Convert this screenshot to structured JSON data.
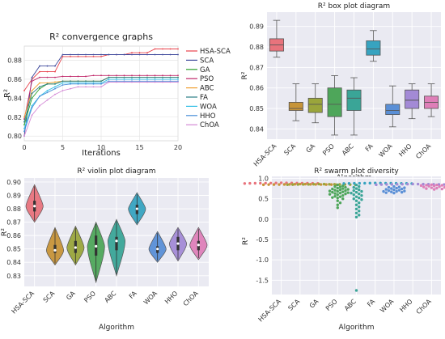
{
  "figure": {
    "algorithms": [
      "HSA-SCA",
      "SCA",
      "GA",
      "PSO",
      "ABC",
      "FA",
      "WOA",
      "HHO",
      "ChOA"
    ]
  },
  "chart_data": [
    {
      "type": "line",
      "title": "R² convergence graphs",
      "xlabel": "Iterations",
      "ylabel": "R²",
      "xlim": [
        0,
        20
      ],
      "ylim": [
        0.795,
        0.895
      ],
      "xticks": [
        0,
        5,
        10,
        15,
        20
      ],
      "yticks": [
        0.8,
        0.82,
        0.84,
        0.86,
        0.88
      ],
      "grid": true,
      "legend_position": "right",
      "series": [
        {
          "name": "HSA-SCA",
          "color": "#e8434c",
          "x": [
            0,
            1,
            2,
            3,
            4,
            5,
            6,
            7,
            8,
            9,
            10,
            11,
            12,
            13,
            14,
            15,
            16,
            17,
            18,
            19,
            20
          ],
          "y": [
            0.848,
            0.86,
            0.868,
            0.868,
            0.868,
            0.884,
            0.884,
            0.884,
            0.884,
            0.884,
            0.884,
            0.886,
            0.886,
            0.886,
            0.888,
            0.888,
            0.888,
            0.892,
            0.892,
            0.892,
            0.892
          ]
        },
        {
          "name": "SCA",
          "color": "#3f4a9c",
          "x": [
            0,
            1,
            2,
            3,
            4,
            5,
            6,
            7,
            8,
            9,
            10,
            11,
            12,
            13,
            14,
            15,
            16,
            17,
            18,
            19,
            20
          ],
          "y": [
            0.8,
            0.862,
            0.874,
            0.874,
            0.874,
            0.886,
            0.886,
            0.886,
            0.886,
            0.886,
            0.886,
            0.886,
            0.886,
            0.886,
            0.886,
            0.886,
            0.886,
            0.886,
            0.886,
            0.886,
            0.886
          ]
        },
        {
          "name": "GA",
          "color": "#2ca02c",
          "x": [
            0,
            1,
            2,
            3,
            4,
            5,
            6,
            7,
            8,
            9,
            10,
            11,
            12,
            13,
            14,
            15,
            16,
            17,
            18,
            19,
            20
          ],
          "y": [
            0.812,
            0.84,
            0.85,
            0.855,
            0.855,
            0.858,
            0.858,
            0.858,
            0.858,
            0.858,
            0.858,
            0.862,
            0.862,
            0.862,
            0.862,
            0.862,
            0.862,
            0.862,
            0.862,
            0.862,
            0.862
          ]
        },
        {
          "name": "PSO",
          "color": "#c0286a",
          "x": [
            0,
            1,
            2,
            3,
            4,
            5,
            6,
            7,
            8,
            9,
            10,
            11,
            12,
            13,
            14,
            15,
            16,
            17,
            18,
            19,
            20
          ],
          "y": [
            0.818,
            0.858,
            0.862,
            0.862,
            0.862,
            0.863,
            0.863,
            0.863,
            0.863,
            0.864,
            0.864,
            0.864,
            0.864,
            0.864,
            0.864,
            0.864,
            0.864,
            0.864,
            0.864,
            0.864,
            0.864
          ]
        },
        {
          "name": "ABC",
          "color": "#f0a030",
          "x": [
            0,
            1,
            2,
            3,
            4,
            5,
            6,
            7,
            8,
            9,
            10,
            11,
            12,
            13,
            14,
            15,
            16,
            17,
            18,
            19,
            20
          ],
          "y": [
            0.82,
            0.848,
            0.856,
            0.856,
            0.857,
            0.858,
            0.858,
            0.858,
            0.858,
            0.858,
            0.858,
            0.862,
            0.862,
            0.862,
            0.862,
            0.862,
            0.862,
            0.862,
            0.862,
            0.862,
            0.862
          ]
        },
        {
          "name": "FA",
          "color": "#2a7f85",
          "x": [
            0,
            1,
            2,
            3,
            4,
            5,
            6,
            7,
            8,
            9,
            10,
            11,
            12,
            13,
            14,
            15,
            16,
            17,
            18,
            19,
            20
          ],
          "y": [
            0.815,
            0.845,
            0.852,
            0.855,
            0.855,
            0.858,
            0.858,
            0.858,
            0.858,
            0.858,
            0.858,
            0.862,
            0.862,
            0.862,
            0.862,
            0.862,
            0.862,
            0.862,
            0.862,
            0.862,
            0.862
          ]
        },
        {
          "name": "WOA",
          "color": "#34c0e6",
          "x": [
            0,
            1,
            2,
            3,
            4,
            5,
            6,
            7,
            8,
            9,
            10,
            11,
            12,
            13,
            14,
            15,
            16,
            17,
            18,
            19,
            20
          ],
          "y": [
            0.808,
            0.832,
            0.842,
            0.848,
            0.852,
            0.856,
            0.856,
            0.856,
            0.856,
            0.856,
            0.856,
            0.86,
            0.86,
            0.86,
            0.86,
            0.86,
            0.86,
            0.86,
            0.86,
            0.86,
            0.86
          ]
        },
        {
          "name": "HHO",
          "color": "#4a8fd8",
          "x": [
            0,
            1,
            2,
            3,
            4,
            5,
            6,
            7,
            8,
            9,
            10,
            11,
            12,
            13,
            14,
            15,
            16,
            17,
            18,
            19,
            20
          ],
          "y": [
            0.805,
            0.83,
            0.842,
            0.846,
            0.85,
            0.854,
            0.855,
            0.855,
            0.855,
            0.855,
            0.855,
            0.858,
            0.858,
            0.858,
            0.858,
            0.858,
            0.858,
            0.858,
            0.858,
            0.858,
            0.858
          ]
        },
        {
          "name": "ChOA",
          "color": "#d489d6",
          "x": [
            0,
            1,
            2,
            3,
            4,
            5,
            6,
            7,
            8,
            9,
            10,
            11,
            12,
            13,
            14,
            15,
            16,
            17,
            18,
            19,
            20
          ],
          "y": [
            0.8,
            0.822,
            0.832,
            0.838,
            0.844,
            0.848,
            0.85,
            0.852,
            0.852,
            0.852,
            0.852,
            0.857,
            0.857,
            0.857,
            0.857,
            0.857,
            0.857,
            0.857,
            0.857,
            0.857,
            0.857
          ]
        }
      ]
    },
    {
      "type": "box",
      "title": "R² box plot diagram",
      "xlabel": "Algorithm",
      "ylabel": "R²",
      "ylim": [
        0.835,
        0.897
      ],
      "yticks": [
        0.84,
        0.85,
        0.86,
        0.87,
        0.88,
        0.89
      ],
      "grid": true,
      "boxes": [
        {
          "category": "HSA-SCA",
          "color": "#e8737c",
          "min": 0.875,
          "q1": 0.878,
          "median": 0.881,
          "q3": 0.884,
          "max": 0.893
        },
        {
          "category": "SCA",
          "color": "#c79438",
          "min": 0.844,
          "q1": 0.849,
          "median": 0.85,
          "q3": 0.853,
          "max": 0.862
        },
        {
          "category": "GA",
          "color": "#9aa53b",
          "min": 0.843,
          "q1": 0.848,
          "median": 0.852,
          "q3": 0.855,
          "max": 0.862
        },
        {
          "category": "PSO",
          "color": "#4ea65a",
          "min": 0.837,
          "q1": 0.846,
          "median": 0.852,
          "q3": 0.86,
          "max": 0.866
        },
        {
          "category": "ABC",
          "color": "#3aa597",
          "min": 0.837,
          "q1": 0.849,
          "median": 0.855,
          "q3": 0.859,
          "max": 0.865
        },
        {
          "category": "FA",
          "color": "#37a3c0",
          "min": 0.873,
          "q1": 0.876,
          "median": 0.879,
          "q3": 0.883,
          "max": 0.888
        },
        {
          "category": "WOA",
          "color": "#5a8fd6",
          "min": 0.841,
          "q1": 0.847,
          "median": 0.849,
          "q3": 0.852,
          "max": 0.861
        },
        {
          "category": "HHO",
          "color": "#a38ad6",
          "min": 0.845,
          "q1": 0.85,
          "median": 0.854,
          "q3": 0.859,
          "max": 0.862
        },
        {
          "category": "ChOA",
          "color": "#de7fb8",
          "min": 0.846,
          "q1": 0.85,
          "median": 0.853,
          "q3": 0.856,
          "max": 0.862
        }
      ]
    },
    {
      "type": "violin",
      "title": "R² violin plot diagram",
      "xlabel": "Algorithm",
      "ylabel": "R²",
      "ylim": [
        0.822,
        0.903
      ],
      "yticks": [
        0.83,
        0.84,
        0.85,
        0.86,
        0.87,
        0.88,
        0.89,
        0.9
      ],
      "grid": true,
      "violins": [
        {
          "category": "HSA-SCA",
          "color": "#e8737c",
          "bottom": 0.87,
          "top": 0.898,
          "q1": 0.878,
          "median": 0.882,
          "q3": 0.886
        },
        {
          "category": "SCA",
          "color": "#c79438",
          "bottom": 0.838,
          "top": 0.866,
          "q1": 0.847,
          "median": 0.849,
          "q3": 0.853
        },
        {
          "category": "GA",
          "color": "#9aa53b",
          "bottom": 0.838,
          "top": 0.867,
          "q1": 0.847,
          "median": 0.851,
          "q3": 0.856
        },
        {
          "category": "PSO",
          "color": "#4ea65a",
          "bottom": 0.825,
          "top": 0.87,
          "q1": 0.845,
          "median": 0.852,
          "q3": 0.86
        },
        {
          "category": "ABC",
          "color": "#3aa597",
          "bottom": 0.83,
          "top": 0.872,
          "q1": 0.849,
          "median": 0.856,
          "q3": 0.859
        },
        {
          "category": "FA",
          "color": "#37a3c0",
          "bottom": 0.868,
          "top": 0.892,
          "q1": 0.876,
          "median": 0.88,
          "q3": 0.883
        },
        {
          "category": "WOA",
          "color": "#5a8fd6",
          "bottom": 0.84,
          "top": 0.863,
          "q1": 0.847,
          "median": 0.85,
          "q3": 0.852
        },
        {
          "category": "HHO",
          "color": "#a38ad6",
          "bottom": 0.841,
          "top": 0.866,
          "q1": 0.849,
          "median": 0.854,
          "q3": 0.859
        },
        {
          "category": "ChOA",
          "color": "#de7fb8",
          "bottom": 0.842,
          "top": 0.866,
          "q1": 0.849,
          "median": 0.853,
          "q3": 0.856
        }
      ]
    },
    {
      "type": "scatter",
      "subtype": "swarm",
      "title": "R² swarm plot diversity",
      "xlabel": "Algorithm",
      "ylabel": "R²",
      "ylim": [
        -1.85,
        1.05
      ],
      "yticks": [
        1.0,
        0.5,
        0.0,
        -0.5,
        -1.0,
        -1.5
      ],
      "grid": true,
      "swarms": [
        {
          "category": "HSA-SCA",
          "color": "#e8737c",
          "values": [
            0.875,
            0.878,
            0.879,
            0.88,
            0.881,
            0.881,
            0.882,
            0.882,
            0.883,
            0.884,
            0.885,
            0.886,
            0.887,
            0.889,
            0.893
          ]
        },
        {
          "category": "SCA",
          "color": "#c79438",
          "values": [
            0.844,
            0.846,
            0.848,
            0.849,
            0.849,
            0.85,
            0.85,
            0.851,
            0.852,
            0.853,
            0.854,
            0.855,
            0.857,
            0.86,
            0.862
          ]
        },
        {
          "category": "GA",
          "color": "#9aa53b",
          "values": [
            0.843,
            0.846,
            0.848,
            0.849,
            0.851,
            0.852,
            0.852,
            0.853,
            0.854,
            0.855,
            0.856,
            0.858,
            0.86,
            0.862
          ]
        },
        {
          "category": "PSO",
          "color": "#4ea65a",
          "values": [
            0.84,
            0.82,
            0.8,
            0.79,
            0.78,
            0.76,
            0.75,
            0.74,
            0.73,
            0.72,
            0.71,
            0.7,
            0.69,
            0.68,
            0.67,
            0.66,
            0.65,
            0.64,
            0.63,
            0.62,
            0.61,
            0.6,
            0.58,
            0.56,
            0.55,
            0.53,
            0.52,
            0.5,
            0.45,
            0.4,
            0.35,
            0.28
          ]
        },
        {
          "category": "ABC",
          "color": "#3aa597",
          "values": [
            0.84,
            0.8,
            0.78,
            0.75,
            0.72,
            0.7,
            0.68,
            0.66,
            0.64,
            0.62,
            0.6,
            0.58,
            0.55,
            0.52,
            0.5,
            0.48,
            0.45,
            0.4,
            0.35,
            0.3,
            0.25,
            0.2,
            0.15,
            0.1,
            0.05,
            -1.75
          ]
        },
        {
          "category": "FA",
          "color": "#37a3c0",
          "values": [
            0.873,
            0.875,
            0.876,
            0.877,
            0.878,
            0.879,
            0.879,
            0.88,
            0.881,
            0.882,
            0.883,
            0.884,
            0.885,
            0.888
          ]
        },
        {
          "category": "WOA",
          "color": "#5a8fd6",
          "values": [
            0.8,
            0.79,
            0.78,
            0.77,
            0.76,
            0.75,
            0.74,
            0.73,
            0.72,
            0.71,
            0.7,
            0.69,
            0.68,
            0.68,
            0.67,
            0.66,
            0.65,
            0.64
          ]
        },
        {
          "category": "HHO",
          "color": "#a38ad6",
          "values": [
            0.845,
            0.848,
            0.85,
            0.851,
            0.852,
            0.853,
            0.854,
            0.855,
            0.856,
            0.857,
            0.858,
            0.859,
            0.86,
            0.861,
            0.862
          ]
        },
        {
          "category": "ChOA",
          "color": "#de7fb8",
          "values": [
            0.846,
            0.84,
            0.835,
            0.83,
            0.825,
            0.82,
            0.815,
            0.81,
            0.8,
            0.79,
            0.78,
            0.77,
            0.76,
            0.75,
            0.74,
            0.73
          ]
        }
      ]
    }
  ]
}
